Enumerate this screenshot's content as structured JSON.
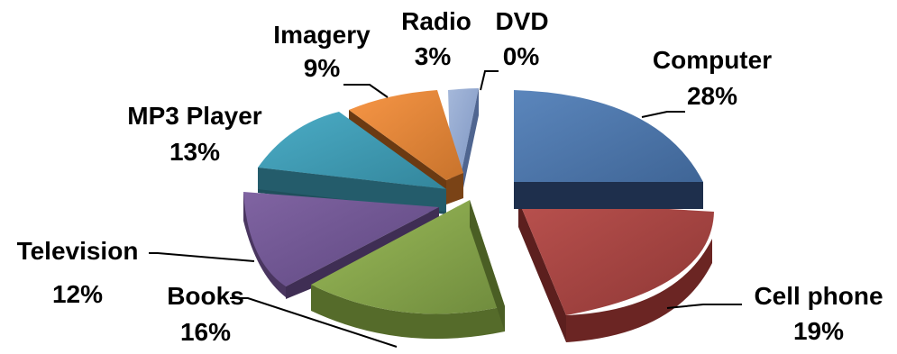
{
  "chart_data": {
    "type": "pie",
    "style": "3d-exploded",
    "slices": [
      {
        "label": "Computer",
        "value": 28,
        "display": "28%",
        "color": "#4A74A8"
      },
      {
        "label": "Cell phone",
        "value": 19,
        "display": "19%",
        "color": "#A84442"
      },
      {
        "label": "Books",
        "value": 16,
        "display": "16%",
        "color": "#86A44C"
      },
      {
        "label": "Television",
        "value": 12,
        "display": "12%",
        "color": "#6F5590"
      },
      {
        "label": "MP3 Player",
        "value": 13,
        "display": "13%",
        "color": "#3E97AE"
      },
      {
        "label": "Imagery",
        "value": 9,
        "display": "9%",
        "color": "#D98534"
      },
      {
        "label": "Radio",
        "value": 3,
        "display": "3%",
        "color": "#8FA6CE"
      },
      {
        "label": "DVD",
        "value": 0,
        "display": "0%",
        "color": "#8FA6CE"
      }
    ]
  }
}
